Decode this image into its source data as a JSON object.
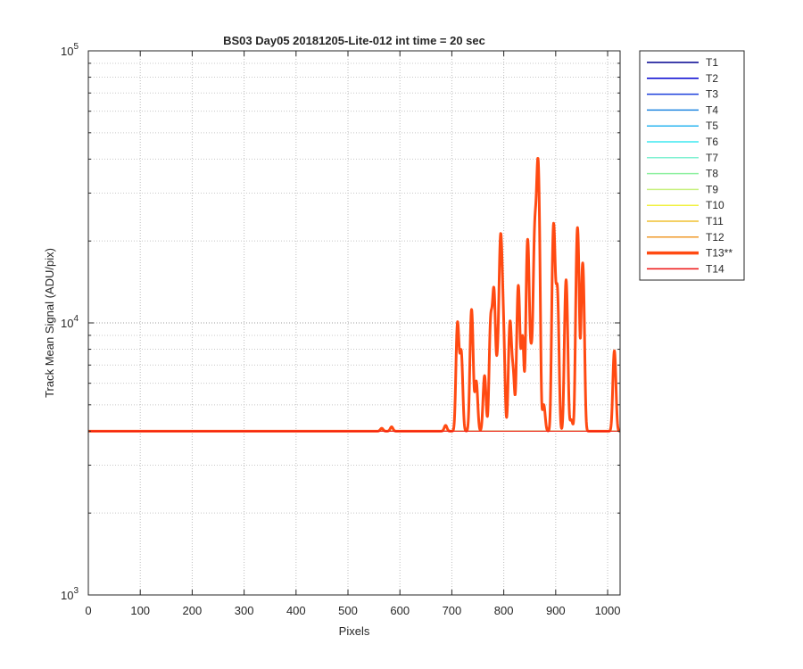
{
  "chart_data": {
    "type": "line",
    "title": "BS03 Day05 20181205-Lite-012 int time = 20 sec",
    "xlabel": "Pixels",
    "ylabel": "Track Mean Signal (ADU/pix)",
    "xlim": [
      0,
      1024
    ],
    "ylim": [
      1000,
      100000
    ],
    "yscale": "log",
    "grid": true,
    "legend_position": "outside-right",
    "xticks": [
      0,
      100,
      200,
      300,
      400,
      500,
      600,
      700,
      800,
      900,
      1000
    ],
    "xtick_labels": [
      "0",
      "100",
      "200",
      "300",
      "400",
      "500",
      "600",
      "700",
      "800",
      "900",
      "1000"
    ],
    "yticks": [
      {
        "base": "10",
        "exp": "3",
        "value": 1000
      },
      {
        "base": "10",
        "exp": "4",
        "value": 10000
      },
      {
        "base": "10",
        "exp": "5",
        "value": 100000
      }
    ],
    "baseline": 4000,
    "series": [
      {
        "name": "T1",
        "color": "#00008f",
        "emphasis": false
      },
      {
        "name": "T2",
        "color": "#0000d0",
        "emphasis": false
      },
      {
        "name": "T3",
        "color": "#1b3fdc",
        "emphasis": false
      },
      {
        "name": "T4",
        "color": "#1f86e0",
        "emphasis": false
      },
      {
        "name": "T5",
        "color": "#2cb6f0",
        "emphasis": false
      },
      {
        "name": "T6",
        "color": "#3ee8f0",
        "emphasis": false
      },
      {
        "name": "T7",
        "color": "#7ef0d0",
        "emphasis": false
      },
      {
        "name": "T8",
        "color": "#8ef0a0",
        "emphasis": false
      },
      {
        "name": "T9",
        "color": "#c8f080",
        "emphasis": false
      },
      {
        "name": "T10",
        "color": "#f0f040",
        "emphasis": false
      },
      {
        "name": "T11",
        "color": "#f0c030",
        "emphasis": false
      },
      {
        "name": "T12",
        "color": "#f09a2a",
        "emphasis": false
      },
      {
        "name": "T13**",
        "color": "#ff4a12",
        "emphasis": true,
        "peaks": [
          {
            "x": 565,
            "y": 4100
          },
          {
            "x": 584,
            "y": 4150
          },
          {
            "x": 688,
            "y": 4200
          },
          {
            "x": 711,
            "y": 10000
          },
          {
            "x": 718,
            "y": 7800
          },
          {
            "x": 738,
            "y": 11200
          },
          {
            "x": 747,
            "y": 6100
          },
          {
            "x": 763,
            "y": 6400
          },
          {
            "x": 775,
            "y": 10200
          },
          {
            "x": 781,
            "y": 13000
          },
          {
            "x": 788,
            "y": 6800
          },
          {
            "x": 794,
            "y": 20300
          },
          {
            "x": 799,
            "y": 9200
          },
          {
            "x": 812,
            "y": 10000
          },
          {
            "x": 818,
            "y": 6500
          },
          {
            "x": 828,
            "y": 13700
          },
          {
            "x": 836,
            "y": 8900
          },
          {
            "x": 846,
            "y": 20200
          },
          {
            "x": 853,
            "y": 7500
          },
          {
            "x": 860,
            "y": 22000
          },
          {
            "x": 866,
            "y": 39000
          },
          {
            "x": 877,
            "y": 5000
          },
          {
            "x": 896,
            "y": 23000
          },
          {
            "x": 903,
            "y": 13300
          },
          {
            "x": 920,
            "y": 14400
          },
          {
            "x": 930,
            "y": 4400
          },
          {
            "x": 942,
            "y": 22400
          },
          {
            "x": 952,
            "y": 16600
          },
          {
            "x": 1013,
            "y": 7900
          }
        ]
      },
      {
        "name": "T14",
        "color": "#ee1010",
        "emphasis": false
      }
    ]
  }
}
